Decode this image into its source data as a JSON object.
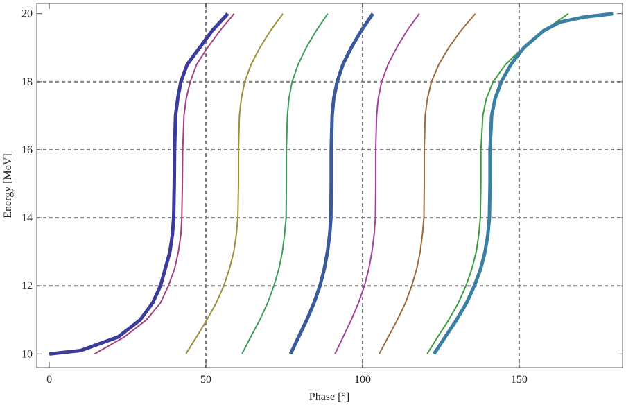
{
  "chart_data": {
    "type": "line",
    "xlabel": "Phase [°]",
    "ylabel": "Energy [MeV]",
    "xlim": [
      -4,
      183
    ],
    "ylim": [
      9.6,
      20.3
    ],
    "xticks": [
      0,
      50,
      100,
      150
    ],
    "yticks": [
      10,
      12,
      14,
      16,
      18,
      20
    ],
    "xgrid": [
      50,
      100,
      150
    ],
    "ygrid": [
      12,
      14,
      16,
      18
    ],
    "series": [
      {
        "color": "#3b3b9c",
        "linewidth": 5,
        "x": [
          0,
          10,
          22,
          29,
          33,
          35.5,
          37,
          38.5,
          39.3,
          39.7,
          39.9,
          40,
          40.3,
          41,
          42,
          44,
          48,
          52,
          57
        ],
        "y": [
          10,
          10.1,
          10.5,
          11,
          11.5,
          12,
          12.5,
          13,
          13.5,
          14,
          15,
          16,
          17,
          17.5,
          18,
          18.5,
          19,
          19.5,
          20
        ]
      },
      {
        "color": "#a3407f",
        "linewidth": 2,
        "x": [
          14.4,
          24,
          31,
          35.5,
          38,
          40,
          41.2,
          42,
          42.3,
          42.5,
          42.6,
          43,
          43.7,
          45,
          47,
          50.5,
          54.5,
          59
        ],
        "y": [
          10,
          10.5,
          11,
          11.5,
          12,
          12.5,
          13,
          13.5,
          14,
          15,
          16,
          17,
          17.5,
          18,
          18.5,
          19,
          19.5,
          20
        ]
      },
      {
        "color": "#9c8f3c",
        "linewidth": 2,
        "x": [
          43.6,
          47.0,
          50.3,
          53.3,
          55.7,
          57.5,
          58.9,
          59.7,
          60.2,
          60.4,
          60.4,
          60.7,
          61.3,
          62.4,
          64.4,
          67.2,
          70.6,
          74.6
        ],
        "y": [
          10,
          10.5,
          11,
          11.5,
          12,
          12.5,
          13,
          13.5,
          14,
          15,
          16,
          17,
          17.5,
          18,
          18.5,
          19,
          19.5,
          20
        ]
      },
      {
        "color": "#3e9c58",
        "linewidth": 2,
        "x": [
          61.5,
          64.3,
          67.2,
          69.7,
          71.7,
          73.3,
          74.4,
          75.1,
          75.6,
          75.7,
          75.7,
          76.0,
          76.5,
          77.5,
          79.4,
          82.0,
          85.2,
          88.9
        ],
        "y": [
          10,
          10.5,
          11,
          11.5,
          12,
          12.5,
          13,
          13.5,
          14,
          15,
          16,
          17,
          17.5,
          18,
          18.5,
          19,
          19.5,
          20
        ]
      },
      {
        "color": "#3b5a9c",
        "linewidth": 5,
        "x": [
          77,
          79.6,
          82.2,
          84.5,
          86.4,
          87.8,
          88.8,
          89.5,
          89.9,
          90,
          90,
          90.3,
          90.8,
          91.9,
          93.7,
          96.4,
          99.6,
          103.3
        ],
        "y": [
          10,
          10.5,
          11,
          11.5,
          12,
          12.5,
          13,
          13.5,
          14,
          15,
          16,
          17,
          17.5,
          18,
          18.5,
          19,
          19.5,
          20
        ]
      },
      {
        "color": "#a3409c",
        "linewidth": 2,
        "x": [
          91.2,
          93.8,
          96.4,
          98.7,
          100.6,
          102.0,
          103.0,
          103.7,
          104.1,
          104.2,
          104.2,
          104.5,
          105.0,
          106.1,
          108.1,
          110.9,
          114.2,
          118.1
        ],
        "y": [
          10,
          10.5,
          11,
          11.5,
          12,
          12.5,
          13,
          13.5,
          14,
          15,
          16,
          17,
          17.5,
          18,
          18.5,
          19,
          19.5,
          20
        ]
      },
      {
        "color": "#9c6a3b",
        "linewidth": 2,
        "x": [
          105.3,
          108.2,
          111.1,
          113.7,
          115.7,
          117.3,
          118.4,
          119.1,
          119.6,
          119.7,
          119.7,
          120.0,
          120.7,
          122.0,
          124.3,
          127.5,
          131.4,
          136.0
        ],
        "y": [
          10,
          10.5,
          11,
          11.5,
          12,
          12.5,
          13,
          13.5,
          14,
          15,
          16,
          17,
          17.5,
          18,
          18.5,
          19,
          19.5,
          20
        ]
      },
      {
        "color": "#3d9c3d",
        "linewidth": 2,
        "x": [
          120.6,
          124.0,
          127.5,
          130.6,
          133.0,
          134.9,
          136.3,
          137.1,
          137.6,
          137.8,
          137.8,
          138.4,
          139.5,
          141.7,
          145.6,
          151.2,
          157.9,
          165.7
        ],
        "y": [
          10,
          10.5,
          11,
          11.5,
          12,
          12.5,
          13,
          13.5,
          14,
          15,
          16,
          17,
          17.5,
          18,
          18.5,
          19,
          19.5,
          20
        ]
      },
      {
        "color": "#3b80a3",
        "linewidth": 5,
        "x": [
          122.8,
          126.4,
          130.0,
          133.2,
          135.7,
          137.7,
          139.1,
          140.0,
          140.5,
          140.7,
          140.7,
          141.2,
          142.3,
          144.3,
          147.3,
          151.5,
          157.8,
          163,
          170.8,
          180
        ],
        "y": [
          10,
          10.5,
          11,
          11.5,
          12,
          12.5,
          13,
          13.5,
          14,
          15,
          16,
          17,
          17.5,
          18,
          18.5,
          19,
          19.5,
          19.75,
          19.9,
          20
        ]
      }
    ]
  }
}
